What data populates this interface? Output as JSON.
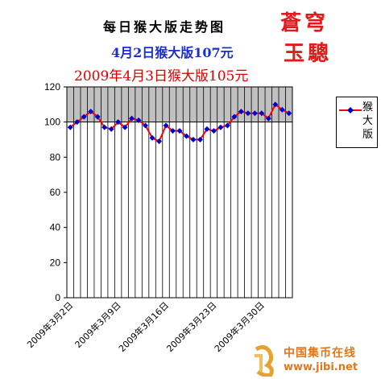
{
  "header": {
    "title": "每日猴大版走势图",
    "subtitle1": "4月2日猴大版107元",
    "subtitle2": "2009年4月3日猴大版105元"
  },
  "brand": {
    "line1": "蒼穹",
    "line2": "玉驄"
  },
  "watermark": {
    "site_name": "中国集币在线",
    "url": "www.jibi.net"
  },
  "colors": {
    "line": "#ff0000",
    "marker": "#0000cc",
    "plot_bg": "#c0c0c0",
    "subtitle1": "#1a2fd0",
    "subtitle2": "#e00000",
    "brand": "#e21a1a"
  },
  "chart_data": {
    "type": "line",
    "ylim": [
      0,
      120
    ],
    "yticks": [
      0,
      20,
      40,
      60,
      80,
      100,
      120
    ],
    "x_tick_labels": [
      "2009年3月2日",
      "2009年3月9日",
      "2009年3月16日",
      "2009年3月23日",
      "2009年3月30日"
    ],
    "x_tick_index": [
      0,
      7,
      14,
      21,
      28
    ],
    "grid": "vertical",
    "legend_position": "right",
    "series": [
      {
        "name": "猴大版",
        "x": [
          "2009-03-02",
          "2009-03-03",
          "2009-03-04",
          "2009-03-05",
          "2009-03-06",
          "2009-03-07",
          "2009-03-08",
          "2009-03-09",
          "2009-03-10",
          "2009-03-11",
          "2009-03-12",
          "2009-03-13",
          "2009-03-14",
          "2009-03-15",
          "2009-03-16",
          "2009-03-17",
          "2009-03-18",
          "2009-03-19",
          "2009-03-20",
          "2009-03-21",
          "2009-03-22",
          "2009-03-23",
          "2009-03-24",
          "2009-03-25",
          "2009-03-26",
          "2009-03-27",
          "2009-03-28",
          "2009-03-29",
          "2009-03-30",
          "2009-03-31",
          "2009-04-01",
          "2009-04-02",
          "2009-04-03"
        ],
        "values": [
          97,
          100,
          103,
          106,
          103,
          97,
          96,
          100,
          97,
          102,
          101,
          98,
          91,
          89,
          98,
          95,
          95,
          92,
          90,
          90,
          96,
          95,
          97,
          98,
          103,
          106,
          105,
          105,
          105,
          102,
          110,
          107,
          105
        ]
      }
    ]
  }
}
